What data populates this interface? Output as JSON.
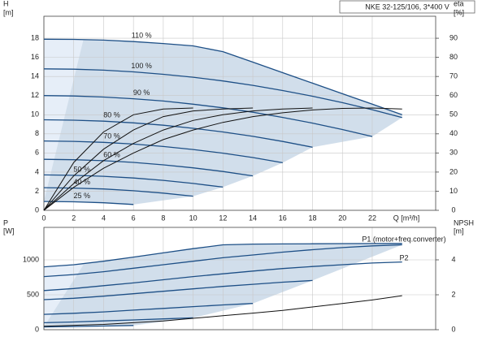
{
  "header": {
    "title": "NKE 32-125/106, 3*400 V"
  },
  "chart_data": [
    {
      "type": "line",
      "y_label": "H",
      "y_unit": "[m]",
      "y2_label": "eta",
      "y2_unit": "[%]",
      "x_label": "Q [m³/h]",
      "x": [
        0,
        2,
        4,
        6,
        8,
        10,
        12,
        14,
        16,
        18,
        20,
        22,
        24
      ],
      "xlim": [
        0,
        26.25
      ],
      "xticks": [
        0,
        2,
        4,
        6,
        8,
        10,
        12,
        14,
        16,
        18,
        20,
        22
      ],
      "ylim": [
        0,
        20.3
      ],
      "yticks": [
        0,
        2,
        4,
        6,
        8,
        10,
        12,
        14,
        16,
        18
      ],
      "y2lim": [
        0,
        101.5
      ],
      "y2ticks": [
        0,
        10,
        20,
        30,
        40,
        50,
        60,
        70,
        80,
        90
      ],
      "grid": true,
      "series": [
        {
          "name": "110 %",
          "color": "#1d4f86",
          "values": [
            17.9,
            17.88,
            17.8,
            17.65,
            17.45,
            17.2,
            16.6,
            15.5,
            14.4,
            13.3,
            12.2,
            11.1,
            10.0
          ]
        },
        {
          "name": "100 %",
          "color": "#1d4f86",
          "values": [
            14.8,
            14.76,
            14.66,
            14.48,
            14.23,
            13.92,
            13.53,
            13.07,
            12.53,
            11.93,
            11.26,
            10.52,
            9.7
          ]
        },
        {
          "name": "90 %",
          "color": "#1d4f86",
          "values": [
            12.0,
            11.96,
            11.85,
            11.67,
            11.43,
            11.1,
            10.72,
            10.26,
            9.72,
            9.12,
            8.45,
            7.72,
            null
          ]
        },
        {
          "name": "80 %",
          "color": "#1d4f86",
          "values": [
            9.47,
            9.43,
            9.33,
            9.15,
            8.9,
            8.58,
            8.2,
            7.74,
            7.2,
            6.6,
            null,
            null,
            null
          ]
        },
        {
          "name": "70 %",
          "color": "#1d4f86",
          "values": [
            7.25,
            7.21,
            7.11,
            6.93,
            6.68,
            6.36,
            5.98,
            5.52,
            4.98,
            null,
            null,
            null,
            null
          ]
        },
        {
          "name": "60 %",
          "color": "#1d4f86",
          "values": [
            5.33,
            5.29,
            5.19,
            5.01,
            4.76,
            4.44,
            4.06,
            3.6,
            null,
            null,
            null,
            null,
            null
          ]
        },
        {
          "name": "50 %",
          "color": "#1d4f86",
          "values": [
            3.7,
            3.66,
            3.56,
            3.38,
            3.13,
            2.81,
            2.43,
            null,
            null,
            null,
            null,
            null,
            null
          ]
        },
        {
          "name": "40 %",
          "color": "#1d4f86",
          "values": [
            2.37,
            2.33,
            2.23,
            2.05,
            1.8,
            1.48,
            null,
            null,
            null,
            null,
            null,
            null,
            null
          ]
        },
        {
          "name": "25 %",
          "color": "#1d4f86",
          "values": [
            0.93,
            0.89,
            0.79,
            0.61,
            null,
            null,
            null,
            null,
            null,
            null,
            null,
            null,
            null
          ]
        },
        {
          "axis": "y2",
          "color": "#111111",
          "values": [
            0,
            12,
            22,
            30,
            37,
            42,
            46,
            49,
            51,
            52.5,
            53.3,
            53.5,
            53
          ]
        },
        {
          "axis": "y2",
          "color": "#111111",
          "values": [
            0,
            14,
            26,
            35,
            42,
            47,
            50,
            52,
            53,
            53.5,
            null,
            null,
            null
          ]
        },
        {
          "axis": "y2",
          "color": "#111111",
          "values": [
            0,
            18,
            32,
            42,
            49,
            52,
            53,
            53.5,
            null,
            null,
            null,
            null,
            null
          ]
        },
        {
          "axis": "y2",
          "color": "#111111",
          "values": [
            0,
            25,
            41,
            50,
            53,
            53.5,
            null,
            null,
            null,
            null,
            null,
            null,
            null
          ]
        }
      ]
    },
    {
      "type": "line",
      "y_label": "P",
      "y_unit": "[W]",
      "y2_label": "NPSH",
      "y2_unit": "[m]",
      "annotations": [
        "P1 (motor+freq.converter)",
        "P2"
      ],
      "x": [
        0,
        2,
        4,
        6,
        8,
        10,
        12,
        14,
        16,
        18,
        20,
        22,
        24
      ],
      "xlim": [
        0,
        26.25
      ],
      "xticks": [
        0,
        2,
        4,
        6,
        8,
        10,
        12,
        14,
        16,
        18,
        20,
        22
      ],
      "ylim": [
        0,
        1465
      ],
      "yticks": [
        0,
        500,
        1000
      ],
      "y2lim": [
        0,
        5.86
      ],
      "y2ticks": [
        0,
        2,
        4
      ],
      "grid": true,
      "series": [
        {
          "color": "#1d4f86",
          "values": [
            900,
            930,
            980,
            1040,
            1100,
            1160,
            1215,
            1225,
            1228,
            1230,
            1232,
            1234,
            1235
          ]
        },
        {
          "color": "#1d4f86",
          "values": [
            760,
            790,
            830,
            880,
            930,
            980,
            1030,
            1070,
            1110,
            1145,
            1175,
            1200,
            1215
          ]
        },
        {
          "color": "#1d4f86",
          "values": [
            430,
            450,
            480,
            515,
            550,
            585,
            620,
            650,
            680,
            705,
            null,
            null,
            null
          ]
        },
        {
          "color": "#1d4f86",
          "values": [
            220,
            235,
            255,
            280,
            305,
            330,
            355,
            375,
            null,
            null,
            null,
            null,
            null
          ]
        },
        {
          "color": "#1d4f86",
          "values": [
            100,
            110,
            125,
            140,
            155,
            170,
            null,
            null,
            null,
            null,
            null,
            null,
            null
          ]
        },
        {
          "color": "#1d4f86",
          "values": [
            40,
            45,
            52,
            60,
            null,
            null,
            null,
            null,
            null,
            null,
            null,
            null,
            null
          ]
        },
        {
          "color": "#1d4f86",
          "values": [
            560,
            590,
            630,
            670,
            715,
            760,
            800,
            840,
            875,
            905,
            930,
            955,
            970
          ]
        },
        {
          "axis": "y2",
          "color": "#111111",
          "values": [
            0.2,
            0.25,
            0.3,
            0.4,
            0.5,
            0.65,
            0.8,
            0.95,
            1.1,
            1.3,
            1.5,
            1.7,
            1.95
          ]
        }
      ]
    }
  ]
}
